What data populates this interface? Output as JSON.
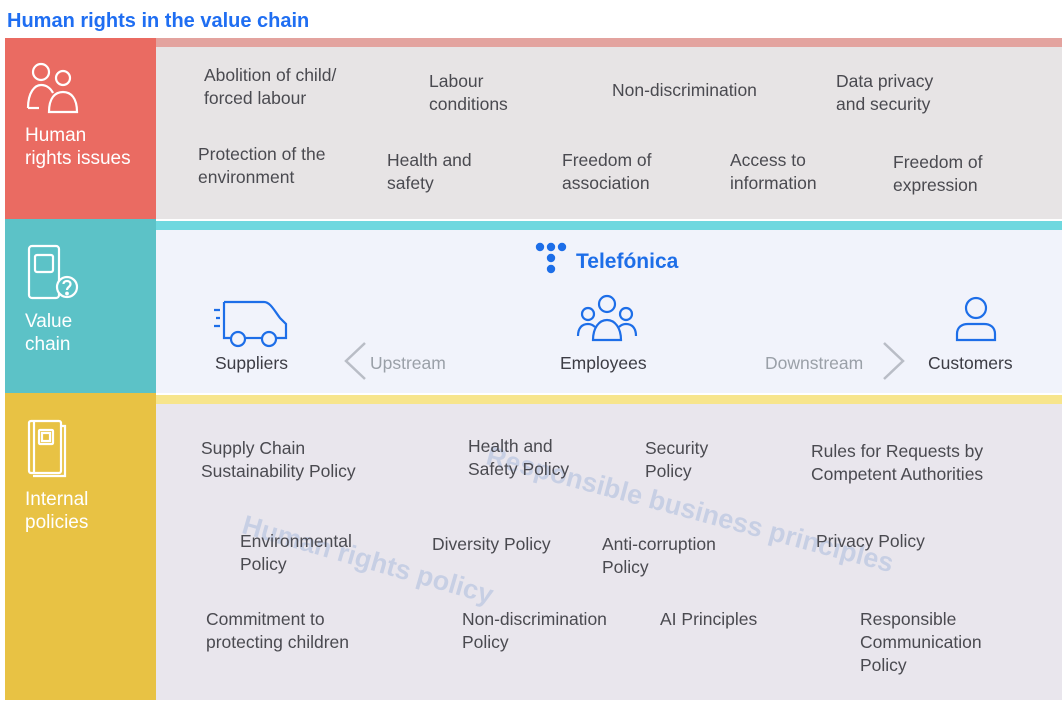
{
  "title": "Human rights in the value chain",
  "colors": {
    "title": "#1f6ef2",
    "issues": "#ea6b62",
    "chain": "#5cc2c7",
    "policies": "#e8c244",
    "blue": "#1d6ee8"
  },
  "issues": {
    "label": "Human\nrights issues",
    "items": [
      "Abolition of child/\nforced labour",
      "Labour\nconditions",
      "Non-discrimination",
      "Data privacy\nand security",
      "Protection of the\nenvironment",
      "Health and\nsafety",
      "Freedom of\nassociation",
      "Access to\ninformation",
      "Freedom of\nexpression"
    ]
  },
  "chain": {
    "label": "Value\nchain",
    "brand": "Telefónica",
    "suppliers": "Suppliers",
    "upstream": "Upstream",
    "employees": "Employees",
    "downstream": "Downstream",
    "customers": "Customers"
  },
  "policies": {
    "label": "Internal\npolicies",
    "items": [
      "Supply Chain\nSustainability Policy",
      "Health and\nSafety Policy",
      "Security\nPolicy",
      "Rules for Requests by\nCompetent Authorities",
      "Environmental\nPolicy",
      "Diversity Policy",
      "Anti-corruption\nPolicy",
      "Privacy Policy",
      "Commitment to\nprotecting children",
      "Non-discrimination\nPolicy",
      "AI Principles",
      "Responsible\nCommunication\nPolicy"
    ],
    "watermark_1": "Human rights policy",
    "watermark_2": "Responsible business principles"
  }
}
